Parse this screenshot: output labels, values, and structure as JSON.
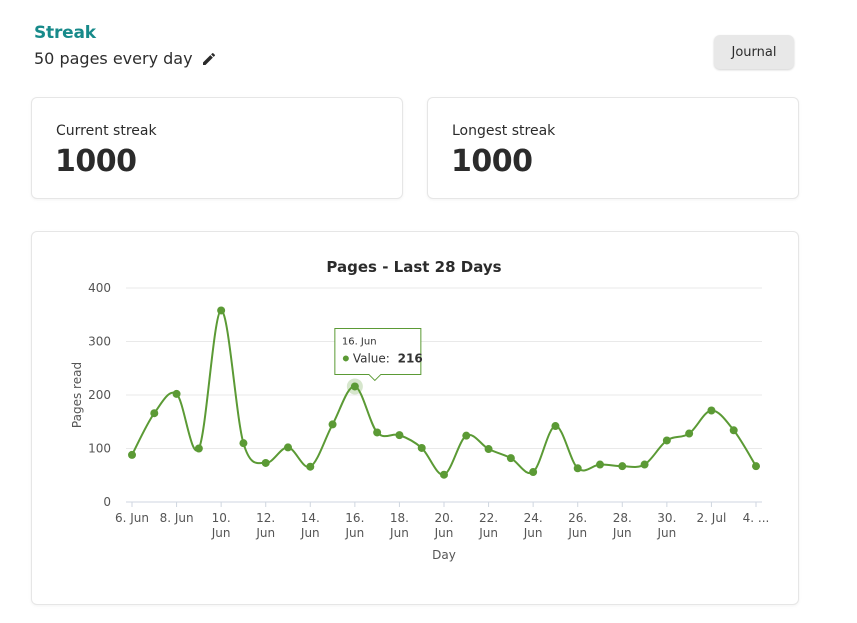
{
  "header": {
    "title": "Streak",
    "goal": "50 pages every day",
    "journal_label": "Journal"
  },
  "stats": {
    "current_label": "Current streak",
    "current_value": "1000",
    "longest_label": "Longest streak",
    "longest_value": "1000"
  },
  "icons": {
    "edit": "pencil-icon"
  },
  "colors": {
    "accent": "#178a8a",
    "series": "#5b9a35"
  },
  "tooltip": {
    "date": "16. Jun",
    "label": "Value:",
    "value": "216"
  },
  "chart_data": {
    "type": "line",
    "title": "Pages - Last 28 Days",
    "xlabel": "Day",
    "ylabel": "Pages read",
    "ylim": [
      0,
      400
    ],
    "yticks": [
      0,
      100,
      200,
      300,
      400
    ],
    "grid": true,
    "x": [
      "6. Jun",
      "7. Jun",
      "8. Jun",
      "9. Jun",
      "10. Jun",
      "11. Jun",
      "12. Jun",
      "13. Jun",
      "14. Jun",
      "15. Jun",
      "16. Jun",
      "17. Jun",
      "18. Jun",
      "19. Jun",
      "20. Jun",
      "21. Jun",
      "22. Jun",
      "23. Jun",
      "24. Jun",
      "25. Jun",
      "26. Jun",
      "27. Jun",
      "28. Jun",
      "29. Jun",
      "30. Jun",
      "1. Jul",
      "2. Jul",
      "3. Jul",
      "4. Jul"
    ],
    "xtick_labels": [
      [
        "6. Jun",
        ""
      ],
      [
        "8. Jun",
        ""
      ],
      [
        "10.",
        "Jun"
      ],
      [
        "12.",
        "Jun"
      ],
      [
        "14.",
        "Jun"
      ],
      [
        "16.",
        "Jun"
      ],
      [
        "18.",
        "Jun"
      ],
      [
        "20.",
        "Jun"
      ],
      [
        "22.",
        "Jun"
      ],
      [
        "24.",
        "Jun"
      ],
      [
        "26.",
        "Jun"
      ],
      [
        "28.",
        "Jun"
      ],
      [
        "30.",
        "Jun"
      ],
      [
        "2. Jul",
        ""
      ],
      [
        "4. ...",
        ""
      ]
    ],
    "series": [
      {
        "name": "Value",
        "values": [
          88,
          166,
          202,
          100,
          358,
          110,
          73,
          102,
          66,
          145,
          216,
          130,
          125,
          101,
          51,
          124,
          99,
          82,
          56,
          142,
          63,
          70,
          67,
          70,
          115,
          128,
          171,
          134,
          67
        ]
      }
    ]
  }
}
